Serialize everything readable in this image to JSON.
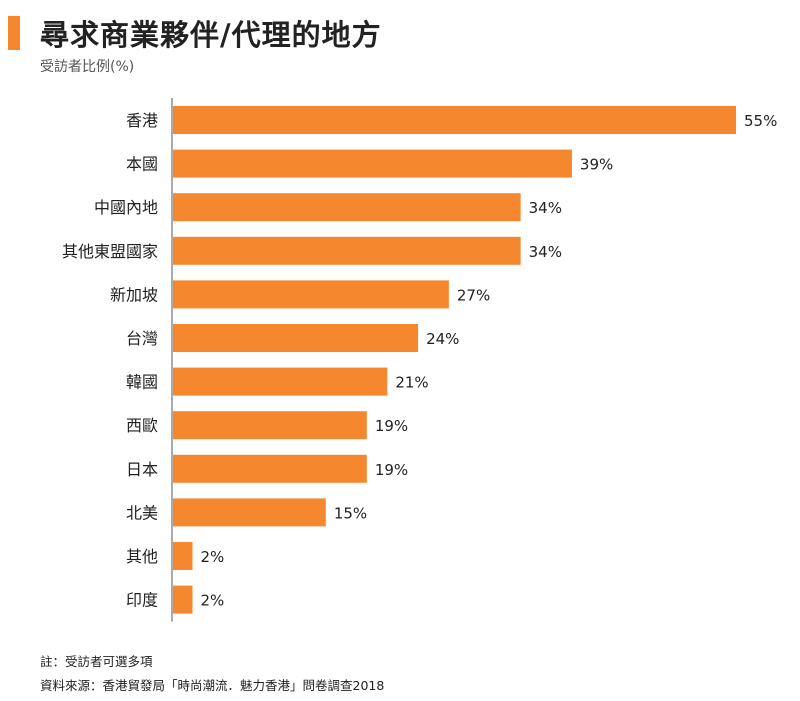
{
  "title": "尋求商業夥伴/代理的地方",
  "subtitle": "受訪者比例(%)",
  "note": "註：受訪者可選多項",
  "source": "資料來源：香港貿發局「時尚潮流．魅力香港」問卷調查2018",
  "colors": {
    "bar": "#f5882f",
    "accent": "#f5882f",
    "axis": "#555555",
    "label": "#222222"
  },
  "chart_data": {
    "type": "bar",
    "orientation": "horizontal",
    "categories": [
      "香港",
      "本國",
      "中國內地",
      "其他東盟國家",
      "新加坡",
      "台灣",
      "韓國",
      "西歐",
      "日本",
      "北美",
      "其他",
      "印度"
    ],
    "values": [
      55,
      39,
      34,
      34,
      27,
      24,
      21,
      19,
      19,
      15,
      2,
      2
    ],
    "value_labels": [
      "55%",
      "39%",
      "34%",
      "34%",
      "27%",
      "24%",
      "21%",
      "19%",
      "19%",
      "15%",
      "2%",
      "2%"
    ],
    "title": "尋求商業夥伴/代理的地方",
    "ylabel": "受訪者比例(%)",
    "xlim": [
      0,
      55
    ],
    "grid": false,
    "legend": "none"
  }
}
